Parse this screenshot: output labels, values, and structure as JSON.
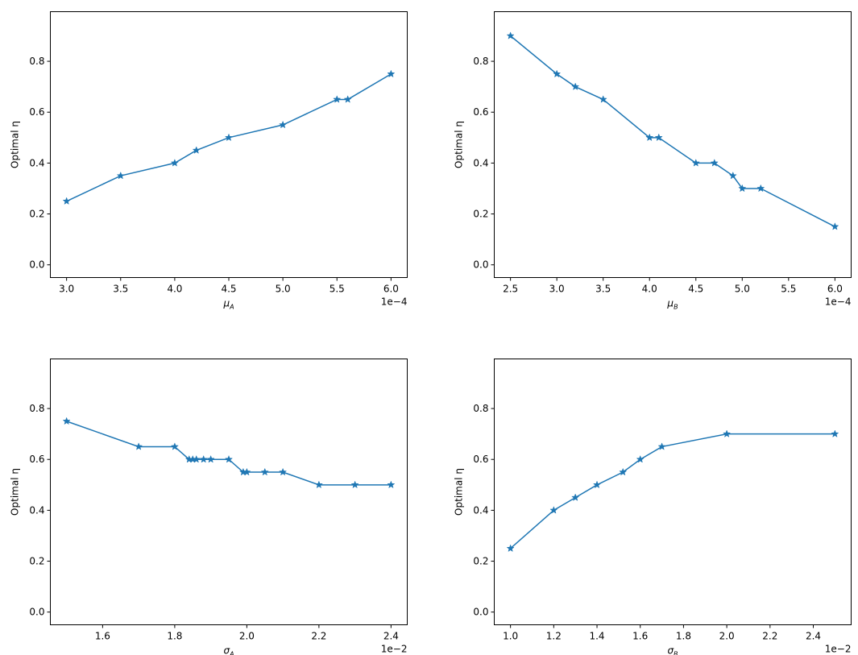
{
  "chart_data": [
    {
      "type": "line",
      "ylabel": "Optimal η",
      "xlabel_base": "μ",
      "xlabel_sub": "A",
      "offset_text": "1e−4",
      "xlim": [
        2.85,
        6.15
      ],
      "ylim": [
        -0.05,
        0.995
      ],
      "xticks": [
        3.0,
        3.5,
        4.0,
        4.5,
        5.0,
        5.5,
        6.0
      ],
      "xtick_labels": [
        "3.0",
        "3.5",
        "4.0",
        "4.5",
        "5.0",
        "5.5",
        "6.0"
      ],
      "yticks": [
        0.0,
        0.2,
        0.4,
        0.6,
        0.8
      ],
      "ytick_labels": [
        "0.0",
        "0.2",
        "0.4",
        "0.6",
        "0.8"
      ],
      "marker": "star",
      "color": "#1f77b4",
      "series": [
        {
          "x": [
            3.0,
            3.5,
            4.0,
            4.2,
            4.5,
            5.0,
            5.5,
            5.6,
            6.0
          ],
          "y": [
            0.25,
            0.35,
            0.4,
            0.45,
            0.5,
            0.55,
            0.65,
            0.65,
            0.75
          ]
        }
      ]
    },
    {
      "type": "line",
      "ylabel": "Optimal η",
      "xlabel_base": "μ",
      "xlabel_sub": "B",
      "offset_text": "1e−4",
      "xlim": [
        2.325,
        6.175
      ],
      "ylim": [
        -0.05,
        0.995
      ],
      "xticks": [
        2.5,
        3.0,
        3.5,
        4.0,
        4.5,
        5.0,
        5.5,
        6.0
      ],
      "xtick_labels": [
        "2.5",
        "3.0",
        "3.5",
        "4.0",
        "4.5",
        "5.0",
        "5.5",
        "6.0"
      ],
      "yticks": [
        0.0,
        0.2,
        0.4,
        0.6,
        0.8
      ],
      "ytick_labels": [
        "0.0",
        "0.2",
        "0.4",
        "0.6",
        "0.8"
      ],
      "marker": "star",
      "color": "#1f77b4",
      "series": [
        {
          "x": [
            2.5,
            3.0,
            3.2,
            3.5,
            4.0,
            4.1,
            4.5,
            4.7,
            4.9,
            5.0,
            5.2,
            6.0
          ],
          "y": [
            0.9,
            0.75,
            0.7,
            0.65,
            0.5,
            0.5,
            0.4,
            0.4,
            0.35,
            0.3,
            0.3,
            0.15
          ]
        }
      ]
    },
    {
      "type": "line",
      "ylabel": "Optimal η",
      "xlabel_base": "σ",
      "xlabel_sub": "A",
      "offset_text": "1e−2",
      "xlim": [
        1.455,
        2.445
      ],
      "ylim": [
        -0.05,
        0.995
      ],
      "xticks": [
        1.6,
        1.8,
        2.0,
        2.2,
        2.4
      ],
      "xtick_labels": [
        "1.6",
        "1.8",
        "2.0",
        "2.2",
        "2.4"
      ],
      "yticks": [
        0.0,
        0.2,
        0.4,
        0.6,
        0.8
      ],
      "ytick_labels": [
        "0.0",
        "0.2",
        "0.4",
        "0.6",
        "0.8"
      ],
      "marker": "star",
      "color": "#1f77b4",
      "series": [
        {
          "x": [
            1.5,
            1.7,
            1.8,
            1.84,
            1.85,
            1.86,
            1.88,
            1.9,
            1.95,
            1.99,
            2.0,
            2.05,
            2.1,
            2.2,
            2.3,
            2.4
          ],
          "y": [
            0.75,
            0.65,
            0.65,
            0.6,
            0.6,
            0.6,
            0.6,
            0.6,
            0.6,
            0.55,
            0.55,
            0.55,
            0.55,
            0.5,
            0.5,
            0.5
          ]
        }
      ]
    },
    {
      "type": "line",
      "ylabel": "Optimal η",
      "xlabel_base": "σ",
      "xlabel_sub": "B",
      "offset_text": "1e−2",
      "xlim": [
        0.925,
        2.575
      ],
      "ylim": [
        -0.05,
        0.995
      ],
      "xticks": [
        1.0,
        1.2,
        1.4,
        1.6,
        1.8,
        2.0,
        2.2,
        2.4
      ],
      "xtick_labels": [
        "1.0",
        "1.2",
        "1.4",
        "1.6",
        "1.8",
        "2.0",
        "2.2",
        "2.4"
      ],
      "yticks": [
        0.0,
        0.2,
        0.4,
        0.6,
        0.8
      ],
      "ytick_labels": [
        "0.0",
        "0.2",
        "0.4",
        "0.6",
        "0.8"
      ],
      "marker": "star",
      "color": "#1f77b4",
      "series": [
        {
          "x": [
            1.0,
            1.2,
            1.3,
            1.4,
            1.52,
            1.6,
            1.7,
            2.0,
            2.5
          ],
          "y": [
            0.25,
            0.4,
            0.45,
            0.5,
            0.55,
            0.6,
            0.65,
            0.7,
            0.7
          ]
        }
      ]
    }
  ]
}
